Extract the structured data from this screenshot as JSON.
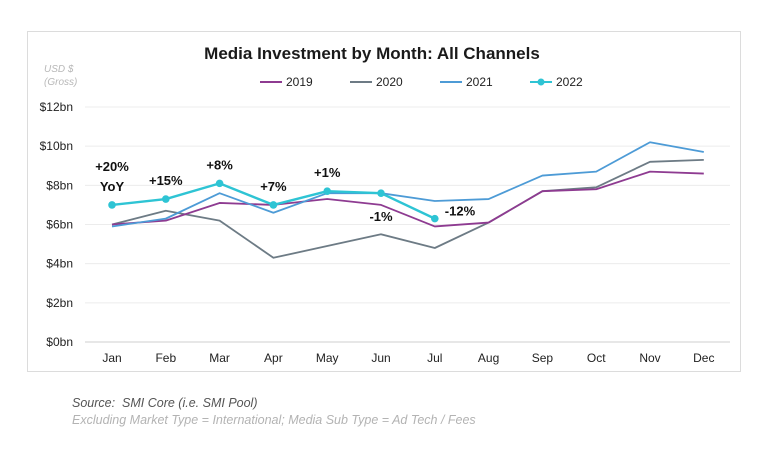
{
  "chart_data": {
    "type": "line",
    "title": "Media Investment by Month: All Channels",
    "ylabel_lines": [
      "USD $",
      "(Gross)"
    ],
    "categories": [
      "Jan",
      "Feb",
      "Mar",
      "Apr",
      "May",
      "Jun",
      "Jul",
      "Aug",
      "Sep",
      "Oct",
      "Nov",
      "Dec"
    ],
    "ylim": [
      0,
      12
    ],
    "yticks": [
      0,
      2,
      4,
      6,
      8,
      10,
      12
    ],
    "ytick_labels": [
      "$0bn",
      "$2bn",
      "$4bn",
      "$6bn",
      "$8bn",
      "$10bn",
      "$12bn"
    ],
    "grid": true,
    "legend_position": "top-center",
    "series": [
      {
        "name": "2019",
        "color": "#8e3b91",
        "markers": false,
        "values": [
          6.0,
          6.2,
          7.1,
          7.0,
          7.3,
          7.0,
          5.9,
          6.1,
          7.7,
          7.8,
          8.7,
          8.6
        ]
      },
      {
        "name": "2020",
        "color": "#6d7b85",
        "markers": false,
        "values": [
          6.0,
          6.7,
          6.2,
          4.3,
          4.9,
          5.5,
          4.8,
          6.1,
          7.7,
          7.9,
          9.2,
          9.3
        ]
      },
      {
        "name": "2021",
        "color": "#4d9bd6",
        "markers": false,
        "values": [
          5.9,
          6.3,
          7.6,
          6.6,
          7.6,
          7.6,
          7.2,
          7.3,
          8.5,
          8.7,
          10.2,
          9.7
        ]
      },
      {
        "name": "2022",
        "color": "#2ec4d4",
        "markers": true,
        "values": [
          7.0,
          7.3,
          8.1,
          7.0,
          7.7,
          7.6,
          6.3,
          null,
          null,
          null,
          null,
          null
        ]
      }
    ],
    "annotations": [
      {
        "lines": [
          "+20%",
          "YoY"
        ],
        "category": "Jan"
      },
      {
        "lines": [
          "+15%"
        ],
        "category": "Feb"
      },
      {
        "lines": [
          "+8%"
        ],
        "category": "Mar"
      },
      {
        "lines": [
          "+7%"
        ],
        "category": "Apr"
      },
      {
        "lines": [
          "+1%"
        ],
        "category": "May"
      },
      {
        "lines": [
          "-1%"
        ],
        "category": "Jun"
      },
      {
        "lines": [
          "-12%"
        ],
        "category": "Jul"
      }
    ]
  },
  "source": {
    "label": "Source:",
    "text": "SMI Core (i.e. SMI Pool)",
    "note": "Excluding Market Type = International; Media Sub Type = Ad Tech / Fees"
  }
}
